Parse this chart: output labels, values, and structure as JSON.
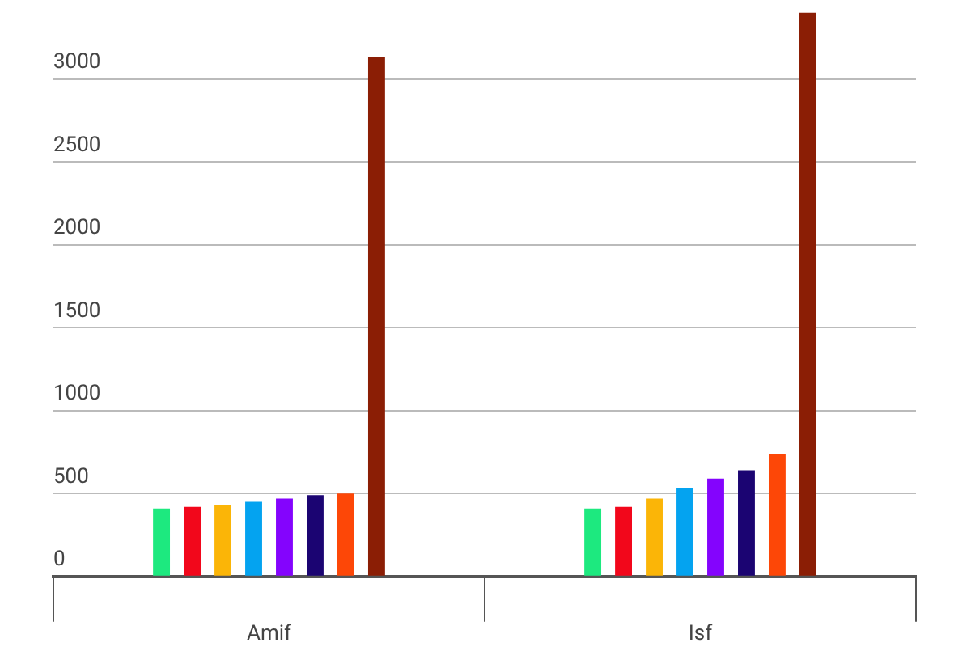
{
  "chart_data": {
    "type": "bar",
    "categories": [
      "Amif",
      "Isf"
    ],
    "series": [
      {
        "color": "#1de97f",
        "values": [
          410,
          410
        ]
      },
      {
        "color": "#f2071b",
        "values": [
          420,
          420
        ]
      },
      {
        "color": "#fbb507",
        "values": [
          430,
          470
        ]
      },
      {
        "color": "#04a3f0",
        "values": [
          450,
          530
        ]
      },
      {
        "color": "#8404fd",
        "values": [
          470,
          590
        ]
      },
      {
        "color": "#1b0472",
        "values": [
          490,
          640
        ]
      },
      {
        "color": "#fd4707",
        "values": [
          500,
          740
        ]
      },
      {
        "color": "#8b1e05",
        "values": [
          3130,
          3400
        ]
      }
    ],
    "ylim": [
      0,
      3400
    ],
    "yticks": [
      0,
      500,
      1000,
      1500,
      2000,
      2500,
      3000
    ],
    "grid": "y",
    "legend": false
  }
}
